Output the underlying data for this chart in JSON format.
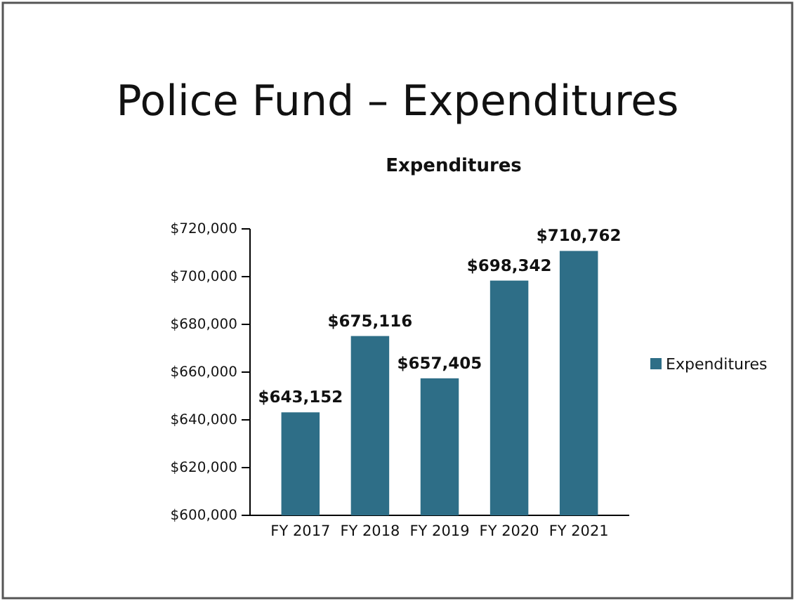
{
  "chart_data": {
    "type": "bar",
    "title": "Police Fund – Expenditures",
    "subtitle": "Expenditures",
    "categories": [
      "FY 2017",
      "FY 2018",
      "FY 2019",
      "FY 2020",
      "FY 2021"
    ],
    "series": [
      {
        "name": "Expenditures",
        "color": "#2e6e87",
        "values": [
          643152,
          675116,
          657405,
          698342,
          710762
        ]
      }
    ],
    "value_labels": [
      "$643,152",
      "$675,116",
      "$657,405",
      "$698,342",
      "$710,762"
    ],
    "ylim": [
      600000,
      720000
    ],
    "yticks": [
      {
        "value": 600000,
        "label": "$600,000"
      },
      {
        "value": 620000,
        "label": "$620,000"
      },
      {
        "value": 640000,
        "label": "$640,000"
      },
      {
        "value": 660000,
        "label": "$660,000"
      },
      {
        "value": 680000,
        "label": "$680,000"
      },
      {
        "value": 700000,
        "label": "$700,000"
      },
      {
        "value": 720000,
        "label": "$720,000"
      }
    ],
    "grid": false,
    "legend": "right"
  }
}
